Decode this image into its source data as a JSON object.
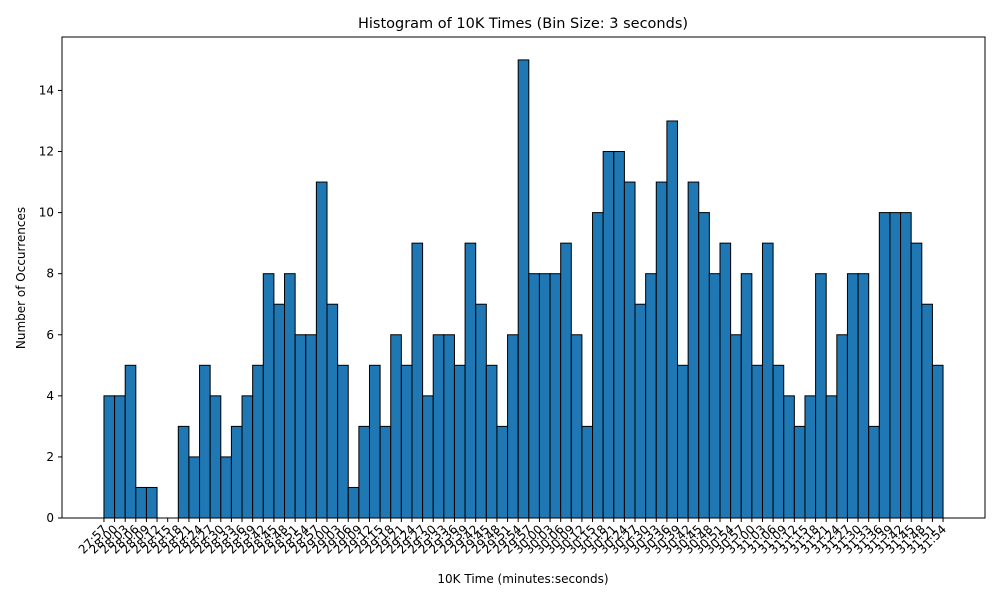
{
  "chart_data": {
    "type": "histogram",
    "title": "Histogram of 10K Times (Bin Size: 3 seconds)",
    "x_label": "10K Time (minutes:seconds)",
    "y_label": "Number of Occurrences",
    "color": "#1f77b4",
    "edgecolor": "#000000",
    "bins": [
      1677,
      1680,
      1683,
      1686,
      1689,
      1692,
      1695,
      1698,
      1701,
      1704,
      1707,
      1710,
      1713,
      1716,
      1719,
      1722,
      1725,
      1728,
      1731,
      1734,
      1737,
      1740,
      1743,
      1746,
      1749,
      1752,
      1755,
      1758,
      1761,
      1764,
      1767,
      1770,
      1773,
      1776,
      1779,
      1782,
      1785,
      1788,
      1791,
      1794,
      1797,
      1800,
      1803,
      1806,
      1809,
      1812,
      1815,
      1818,
      1821,
      1824,
      1827,
      1830,
      1833,
      1836,
      1839,
      1842,
      1845,
      1848,
      1851,
      1854,
      1857,
      1860,
      1863,
      1866,
      1869,
      1872,
      1875,
      1878,
      1881,
      1884,
      1887,
      1890,
      1893,
      1896,
      1899,
      1902,
      1905,
      1908,
      1911,
      1914
    ],
    "values": [
      4,
      4,
      5,
      1,
      1,
      0,
      0,
      3,
      2,
      5,
      4,
      2,
      3,
      4,
      5,
      8,
      7,
      8,
      6,
      6,
      11,
      7,
      5,
      1,
      3,
      5,
      3,
      6,
      5,
      9,
      4,
      6,
      6,
      5,
      9,
      7,
      5,
      3,
      6,
      15,
      8,
      8,
      8,
      9,
      6,
      3,
      10,
      12,
      12,
      11,
      7,
      8,
      11,
      13,
      5,
      11,
      10,
      8,
      9,
      6,
      8,
      5,
      9,
      5,
      4,
      3,
      4,
      8,
      4,
      6,
      8,
      8,
      3,
      10,
      10,
      10,
      9,
      7,
      5
    ],
    "xlim": [
      1665.15,
      1925.85
    ],
    "xticks": [
      {
        "value": 1677,
        "label": "27:57"
      },
      {
        "value": 1680,
        "label": "28:00"
      },
      {
        "value": 1683,
        "label": "28:03"
      },
      {
        "value": 1686,
        "label": "28:06"
      },
      {
        "value": 1689,
        "label": "28:09"
      },
      {
        "value": 1692,
        "label": "28:12"
      },
      {
        "value": 1695,
        "label": "28:15"
      },
      {
        "value": 1698,
        "label": "28:18"
      },
      {
        "value": 1701,
        "label": "28:21"
      },
      {
        "value": 1704,
        "label": "28:24"
      },
      {
        "value": 1707,
        "label": "28:27"
      },
      {
        "value": 1710,
        "label": "28:30"
      },
      {
        "value": 1713,
        "label": "28:33"
      },
      {
        "value": 1716,
        "label": "28:36"
      },
      {
        "value": 1719,
        "label": "28:39"
      },
      {
        "value": 1722,
        "label": "28:42"
      },
      {
        "value": 1725,
        "label": "28:45"
      },
      {
        "value": 1728,
        "label": "28:48"
      },
      {
        "value": 1731,
        "label": "28:51"
      },
      {
        "value": 1734,
        "label": "28:54"
      },
      {
        "value": 1737,
        "label": "28:57"
      },
      {
        "value": 1740,
        "label": "29:00"
      },
      {
        "value": 1743,
        "label": "29:03"
      },
      {
        "value": 1746,
        "label": "29:06"
      },
      {
        "value": 1749,
        "label": "29:09"
      },
      {
        "value": 1752,
        "label": "29:12"
      },
      {
        "value": 1755,
        "label": "29:15"
      },
      {
        "value": 1758,
        "label": "29:18"
      },
      {
        "value": 1761,
        "label": "29:21"
      },
      {
        "value": 1764,
        "label": "29:24"
      },
      {
        "value": 1767,
        "label": "29:27"
      },
      {
        "value": 1770,
        "label": "29:30"
      },
      {
        "value": 1773,
        "label": "29:33"
      },
      {
        "value": 1776,
        "label": "29:36"
      },
      {
        "value": 1779,
        "label": "29:39"
      },
      {
        "value": 1782,
        "label": "29:42"
      },
      {
        "value": 1785,
        "label": "29:45"
      },
      {
        "value": 1788,
        "label": "29:48"
      },
      {
        "value": 1791,
        "label": "29:51"
      },
      {
        "value": 1794,
        "label": "29:54"
      },
      {
        "value": 1797,
        "label": "29:57"
      },
      {
        "value": 1800,
        "label": "30:00"
      },
      {
        "value": 1803,
        "label": "30:03"
      },
      {
        "value": 1806,
        "label": "30:06"
      },
      {
        "value": 1809,
        "label": "30:09"
      },
      {
        "value": 1812,
        "label": "30:12"
      },
      {
        "value": 1815,
        "label": "30:15"
      },
      {
        "value": 1818,
        "label": "30:18"
      },
      {
        "value": 1821,
        "label": "30:21"
      },
      {
        "value": 1824,
        "label": "30:24"
      },
      {
        "value": 1827,
        "label": "30:27"
      },
      {
        "value": 1830,
        "label": "30:30"
      },
      {
        "value": 1833,
        "label": "30:33"
      },
      {
        "value": 1836,
        "label": "30:36"
      },
      {
        "value": 1839,
        "label": "30:39"
      },
      {
        "value": 1842,
        "label": "30:42"
      },
      {
        "value": 1845,
        "label": "30:45"
      },
      {
        "value": 1848,
        "label": "30:48"
      },
      {
        "value": 1851,
        "label": "30:51"
      },
      {
        "value": 1854,
        "label": "30:54"
      },
      {
        "value": 1857,
        "label": "30:57"
      },
      {
        "value": 1860,
        "label": "31:00"
      },
      {
        "value": 1863,
        "label": "31:03"
      },
      {
        "value": 1866,
        "label": "31:06"
      },
      {
        "value": 1869,
        "label": "31:09"
      },
      {
        "value": 1872,
        "label": "31:12"
      },
      {
        "value": 1875,
        "label": "31:15"
      },
      {
        "value": 1878,
        "label": "31:18"
      },
      {
        "value": 1881,
        "label": "31:21"
      },
      {
        "value": 1884,
        "label": "31:24"
      },
      {
        "value": 1887,
        "label": "31:27"
      },
      {
        "value": 1890,
        "label": "31:30"
      },
      {
        "value": 1893,
        "label": "31:33"
      },
      {
        "value": 1896,
        "label": "31:36"
      },
      {
        "value": 1899,
        "label": "31:39"
      },
      {
        "value": 1902,
        "label": "31:42"
      },
      {
        "value": 1905,
        "label": "31:45"
      },
      {
        "value": 1908,
        "label": "31:48"
      },
      {
        "value": 1911,
        "label": "31:51"
      },
      {
        "value": 1914,
        "label": "31:54"
      }
    ],
    "ylim": [
      0,
      15.75
    ],
    "yticks": [
      0,
      2,
      4,
      6,
      8,
      10,
      12,
      14
    ],
    "grid": false
  }
}
